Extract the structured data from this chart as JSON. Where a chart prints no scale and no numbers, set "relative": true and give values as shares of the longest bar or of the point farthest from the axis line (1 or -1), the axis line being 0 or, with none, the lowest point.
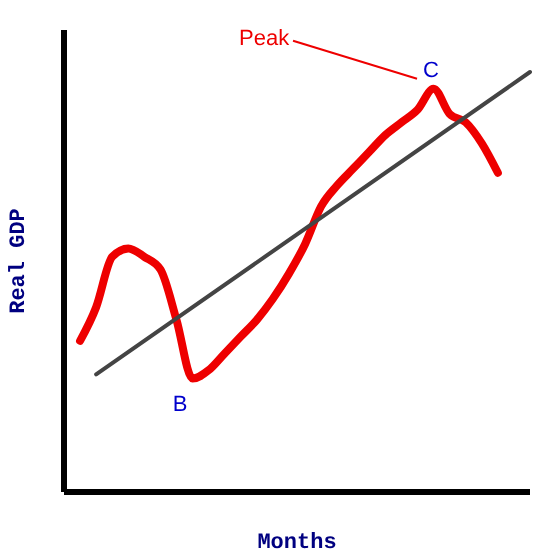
{
  "chart_data": {
    "type": "line",
    "relative": true,
    "xlabel": "Months",
    "ylabel": "Real GDP",
    "categories": [
      null,
      null,
      null,
      null,
      null,
      null,
      null,
      null,
      null,
      null,
      null,
      null,
      null,
      null,
      null,
      null,
      null,
      null,
      null,
      null,
      null,
      null,
      null,
      null,
      null,
      null,
      null,
      null,
      null,
      null
    ],
    "series": [
      {
        "color": "#ee0000",
        "values": [
          null,
          0.36,
          0.44,
          0.56,
          0.58,
          0.56,
          0.53,
          0.41,
          0.27,
          0.29,
          0.33,
          0.37,
          0.41,
          0.46,
          0.52,
          0.59,
          0.68,
          0.73,
          0.77,
          0.81,
          0.85,
          0.88,
          0.91,
          0.96,
          0.9,
          0.88,
          0.83,
          0.76,
          null,
          null
        ]
      },
      {
        "type": "line",
        "color": "#444444",
        "values": [
          null,
          null,
          0.28,
          null,
          null,
          null,
          null,
          null,
          null,
          null,
          null,
          null,
          null,
          null,
          null,
          null,
          null,
          null,
          null,
          null,
          null,
          null,
          null,
          null,
          null,
          null,
          null,
          null,
          null,
          1
        ]
      }
    ],
    "annotations": [
      "Peak",
      "C",
      "B"
    ],
    "grid": false,
    "legend": false,
    "marker": "none"
  }
}
